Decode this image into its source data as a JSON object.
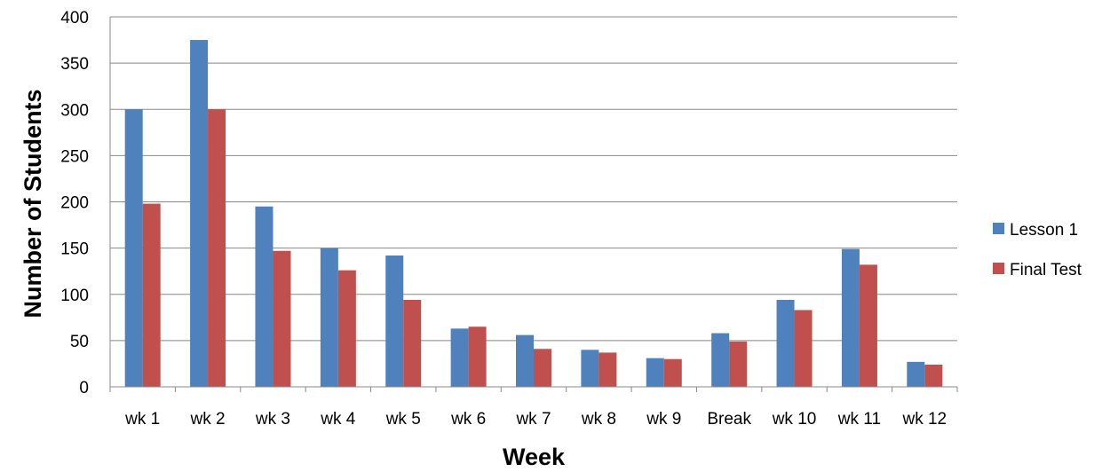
{
  "chart_data": {
    "type": "bar",
    "title": "",
    "xlabel": "Week",
    "ylabel": "Number of Students",
    "categories": [
      "wk 1",
      "wk 2",
      "wk 3",
      "wk 4",
      "wk 5",
      "wk 6",
      "wk 7",
      "wk 8",
      "wk 9",
      "Break",
      "wk 10",
      "wk 11",
      "wk 12"
    ],
    "series": [
      {
        "name": "Lesson 1",
        "color": "#4F81BD",
        "values": [
          300,
          375,
          195,
          150,
          142,
          63,
          56,
          40,
          31,
          58,
          94,
          149,
          27
        ]
      },
      {
        "name": "Final Test",
        "color": "#C0504D",
        "values": [
          198,
          300,
          147,
          126,
          94,
          65,
          41,
          37,
          30,
          49,
          83,
          132,
          24
        ]
      }
    ],
    "ylim": [
      0,
      400
    ],
    "yticks": [
      0,
      50,
      100,
      150,
      200,
      250,
      300,
      350,
      400
    ],
    "grid": true,
    "legend_position": "right"
  }
}
